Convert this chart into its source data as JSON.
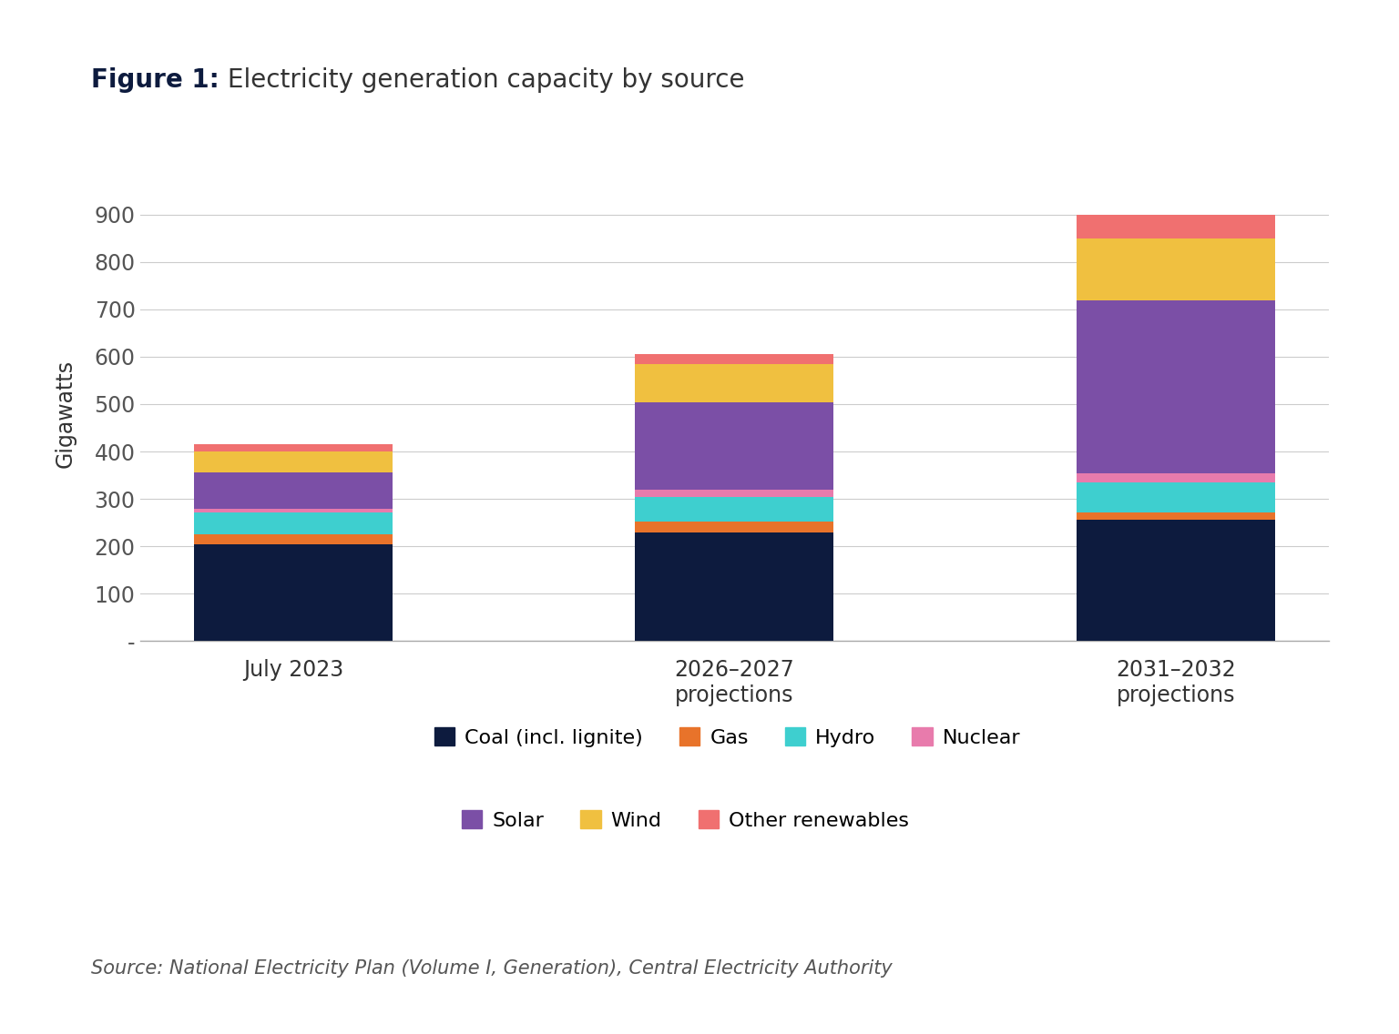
{
  "categories": [
    "July 2023",
    "2026–2027\nprojections",
    "2031–2032\nprojections"
  ],
  "series": {
    "Coal (incl. lignite)": [
      205,
      230,
      257
    ],
    "Gas": [
      20,
      22,
      15
    ],
    "Hydro": [
      47,
      52,
      62
    ],
    "Nuclear": [
      8,
      15,
      20
    ],
    "Solar": [
      75,
      185,
      365
    ],
    "Wind": [
      45,
      80,
      130
    ],
    "Other renewables": [
      15,
      21,
      50
    ]
  },
  "colors": {
    "Coal (incl. lignite)": "#0d1b3e",
    "Gas": "#e8732a",
    "Hydro": "#3ecfcf",
    "Nuclear": "#e87bac",
    "Solar": "#7b4fa6",
    "Wind": "#f0c040",
    "Other renewables": "#f07070"
  },
  "title_bold": "Figure 1:",
  "title_regular": " Electricity generation capacity by source",
  "ylabel": "Gigawatts",
  "yticks": [
    0,
    100,
    200,
    300,
    400,
    500,
    600,
    700,
    800,
    900
  ],
  "ytick_labels": [
    "-",
    "100",
    "200",
    "300",
    "400",
    "500",
    "600",
    "700",
    "800",
    "900"
  ],
  "ylim": [
    0,
    960
  ],
  "source_text": "Source: National Electricity Plan (Volume I, Generation), Central Electricity Authority",
  "background_color": "#ffffff",
  "bar_width": 0.45,
  "legend_order": [
    "Coal (incl. lignite)",
    "Gas",
    "Hydro",
    "Nuclear",
    "Solar",
    "Wind",
    "Other renewables"
  ]
}
